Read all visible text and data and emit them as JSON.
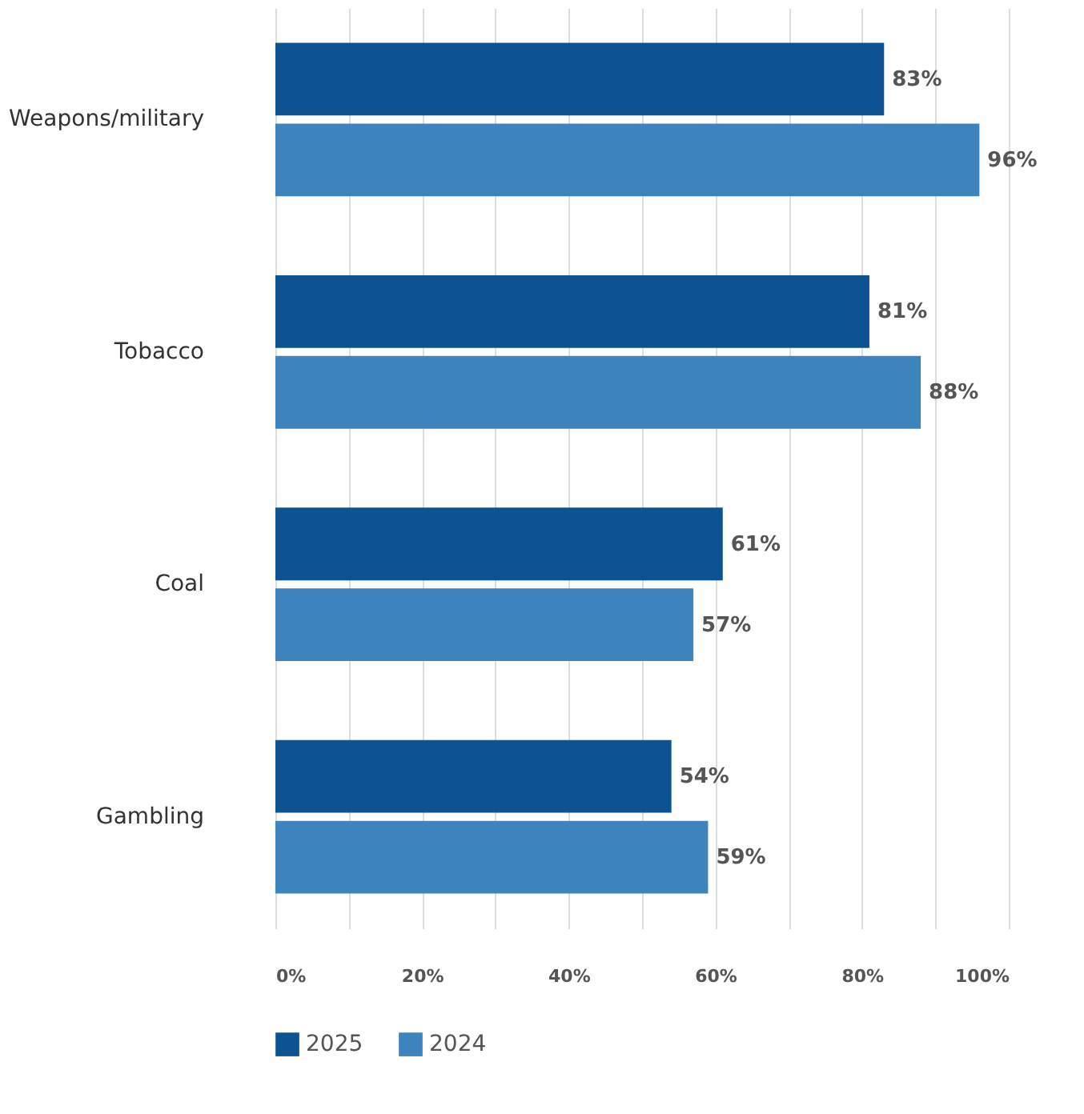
{
  "chart_data": {
    "type": "bar",
    "orientation": "horizontal",
    "categories": [
      "Weapons/military",
      "Tobacco",
      "Coal",
      "Gambling"
    ],
    "series": [
      {
        "name": "2025",
        "color": "#0e5391",
        "values": [
          83,
          81,
          61,
          54
        ],
        "value_labels": [
          "83%",
          "81%",
          "61%",
          "54%"
        ]
      },
      {
        "name": "2024",
        "color": "#3d83bd",
        "values": [
          96,
          88,
          57,
          59
        ],
        "value_labels": [
          "96%",
          "88%",
          "57%",
          "59%"
        ]
      }
    ],
    "xlim": [
      0,
      100
    ],
    "xticks": [
      {
        "value": 0,
        "label": "0%"
      },
      {
        "value": 10,
        "label": null
      },
      {
        "value": 20,
        "label": "20%"
      },
      {
        "value": 30,
        "label": null
      },
      {
        "value": 40,
        "label": "40%"
      },
      {
        "value": 50,
        "label": null
      },
      {
        "value": 60,
        "label": "60%"
      },
      {
        "value": 70,
        "label": null
      },
      {
        "value": 80,
        "label": "80%"
      },
      {
        "value": 90,
        "label": null
      },
      {
        "value": 100,
        "label": "100%"
      }
    ],
    "grid": "x",
    "legend": "bottom"
  }
}
